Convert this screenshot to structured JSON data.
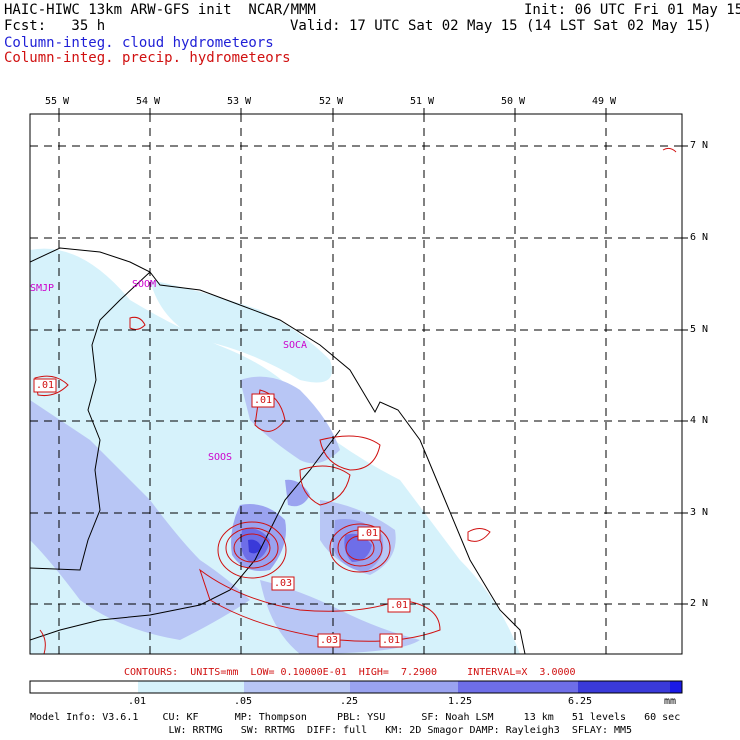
{
  "header": {
    "model_title": "HAIC-HIWC 13km ARW-GFS init  NCAR/MMM",
    "init": "Init: 06 UTC Fri 01 May 15",
    "fcst": "Fcst:   35 h",
    "valid": "Valid: 17 UTC Sat 02 May 15 (14 LST Sat 02 May 15)",
    "field1": "Column-integ. cloud hydrometeors",
    "field2": "Column-integ. precip. hydrometeors"
  },
  "axes": {
    "lon_labels": [
      "55 W",
      "54 W",
      "53 W",
      "52 W",
      "51 W",
      "50 W",
      "49 W"
    ],
    "lat_labels": [
      "7 N",
      "6 N",
      "5 N",
      "4 N",
      "3 N",
      "2 N"
    ]
  },
  "stations": [
    "SMJP",
    "SOOM",
    "SOCA",
    "SOOS"
  ],
  "contour_labels": [
    ".01",
    ".01",
    ".01",
    ".03",
    ".01",
    ".03",
    ".01"
  ],
  "contour_info": "CONTOURS:  UNITS=mm  LOW= 0.10000E-01  HIGH=  7.2900     INTERVAL=X  3.0000",
  "colorbar": {
    "ticks": [
      ".01",
      ".05",
      ".25",
      "1.25",
      "6.25"
    ],
    "unit": "mm",
    "colors": [
      "#ffffff",
      "#d6f2fb",
      "#b8c6f5",
      "#9aa3f0",
      "#6e6ee8",
      "#3a3ad9",
      "#1a1ae6"
    ]
  },
  "model_info": {
    "line1": "Model Info: V3.6.1    CU: KF      MP: Thompson     PBL: YSU      SF: Noah LSM     13 km   51 levels   60 sec",
    "line2": "                       LW: RRTMG   SW: RRTMG  DIFF: full   KM: 2D Smagor DAMP: Rayleigh3  SFLAY: MM5"
  }
}
